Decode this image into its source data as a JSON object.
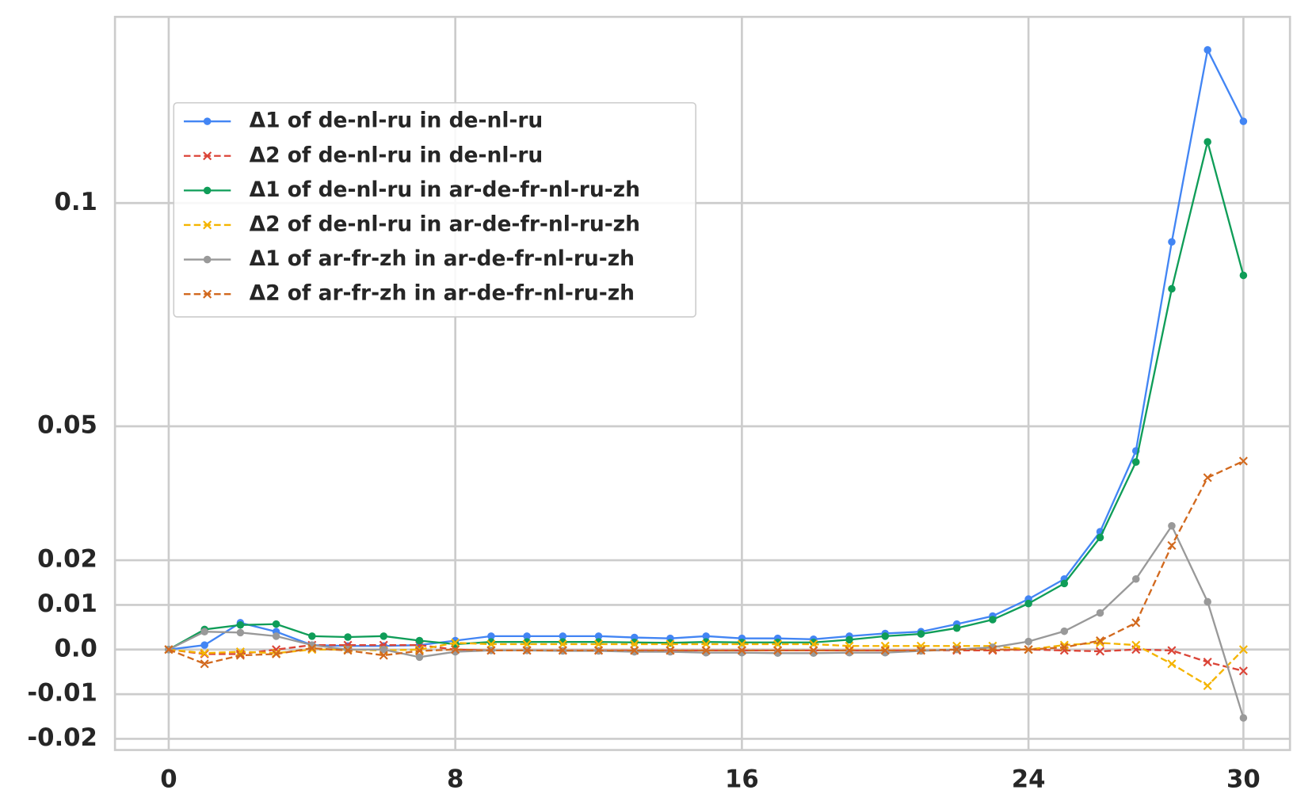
{
  "chart_data": {
    "type": "line",
    "x": [
      0,
      1,
      2,
      3,
      4,
      5,
      6,
      7,
      8,
      9,
      10,
      11,
      12,
      13,
      14,
      15,
      16,
      17,
      18,
      19,
      20,
      21,
      22,
      23,
      24,
      25,
      26,
      27,
      28,
      29,
      30
    ],
    "xlim": [
      -1.5,
      31.3
    ],
    "xticks": [
      0,
      8,
      16,
      24,
      30
    ],
    "ylim": [
      -0.0225,
      0.1417
    ],
    "yticks": [
      -0.02,
      -0.01,
      {
        "value": 0,
        "label": "0.0"
      },
      0.01,
      0.02,
      0.05,
      0.1
    ],
    "grid": true,
    "legend": "upper left",
    "series": [
      {
        "name": "Δ1 of de-nl-ru in de-nl-ru",
        "color": "#4285f4",
        "linestyle": "solid",
        "marker": "o",
        "values": [
          0,
          0.001,
          0.006,
          0.004,
          0.001,
          0.0008,
          0.0008,
          0.001,
          0.002,
          0.003,
          0.003,
          0.003,
          0.003,
          0.0027,
          0.0025,
          0.003,
          0.0025,
          0.0025,
          0.0023,
          0.003,
          0.0036,
          0.004,
          0.0057,
          0.0075,
          0.0113,
          0.0158,
          0.0264,
          0.0445,
          0.0913,
          0.1343,
          0.1183
        ]
      },
      {
        "name": "Δ2 of de-nl-ru in de-nl-ru",
        "color": "#db4437",
        "linestyle": "dashed",
        "marker": "x",
        "values": [
          0,
          -0.001,
          -0.001,
          0,
          0.001,
          0.001,
          0.001,
          0.001,
          0,
          -0.0002,
          -0.0002,
          -0.0002,
          -0.0002,
          -0.0002,
          -0.0002,
          -0.0002,
          -0.0002,
          -0.0002,
          -0.0002,
          -0.0002,
          -0.0002,
          -0.0002,
          -0.0002,
          -0.0002,
          0,
          -0.0002,
          -0.0004,
          0,
          -0.0002,
          -0.0028,
          -0.0048
        ]
      },
      {
        "name": "Δ1 of de-nl-ru in ar-de-fr-nl-ru-zh",
        "color": "#0f9d58",
        "linestyle": "solid",
        "marker": "o",
        "values": [
          0,
          0.0045,
          0.0055,
          0.0057,
          0.003,
          0.0028,
          0.003,
          0.002,
          0.0012,
          0.0017,
          0.0017,
          0.0017,
          0.0017,
          0.0016,
          0.0015,
          0.0017,
          0.0016,
          0.0016,
          0.0016,
          0.0022,
          0.003,
          0.0035,
          0.0048,
          0.0067,
          0.0103,
          0.0148,
          0.0251,
          0.042,
          0.0808,
          0.1137,
          0.0838
        ]
      },
      {
        "name": "Δ2 of de-nl-ru in ar-de-fr-nl-ru-zh",
        "color": "#f4b400",
        "linestyle": "dashed",
        "marker": "x",
        "values": [
          0,
          -0.0008,
          -0.0005,
          -0.0008,
          0,
          0,
          -0.0002,
          0,
          0.0015,
          0.0012,
          0.0012,
          0.0012,
          0.0012,
          0.0012,
          0.0012,
          0.0012,
          0.0012,
          0.0012,
          0.0012,
          0.0008,
          0.0008,
          0.0008,
          0.0008,
          0.0008,
          0,
          0.001,
          0.0015,
          0.001,
          -0.0032,
          -0.0081,
          0
        ]
      },
      {
        "name": "Δ1 of ar-fr-zh in ar-de-fr-nl-ru-zh",
        "color": "#999999",
        "linestyle": "solid",
        "marker": "o",
        "values": [
          0,
          0.004,
          0.0038,
          0.003,
          0.001,
          0,
          0,
          -0.0017,
          -0.0005,
          -0.0002,
          -0.0002,
          -0.0003,
          -0.0003,
          -0.0005,
          -0.0005,
          -0.0007,
          -0.0007,
          -0.0008,
          -0.0008,
          -0.0007,
          -0.0007,
          -0.0003,
          0,
          0.0005,
          0.0018,
          0.0041,
          0.0082,
          0.0158,
          0.0277,
          0.0107,
          -0.0153
        ]
      },
      {
        "name": "Δ2 of ar-fr-zh in ar-de-fr-nl-ru-zh",
        "color": "#d2691e",
        "linestyle": "dashed",
        "marker": "x",
        "values": [
          0,
          -0.0032,
          -0.0013,
          -0.001,
          0.0003,
          -0.0002,
          -0.0013,
          -0.0003,
          0,
          -0.0002,
          -0.0002,
          -0.0002,
          -0.0002,
          -0.0002,
          -0.0002,
          -0.0002,
          -0.0002,
          -0.0002,
          -0.0002,
          -0.0002,
          -0.0002,
          -0.0002,
          0,
          0,
          0,
          0.0005,
          0.002,
          0.006,
          0.0233,
          0.0385,
          0.0422
        ]
      }
    ]
  }
}
